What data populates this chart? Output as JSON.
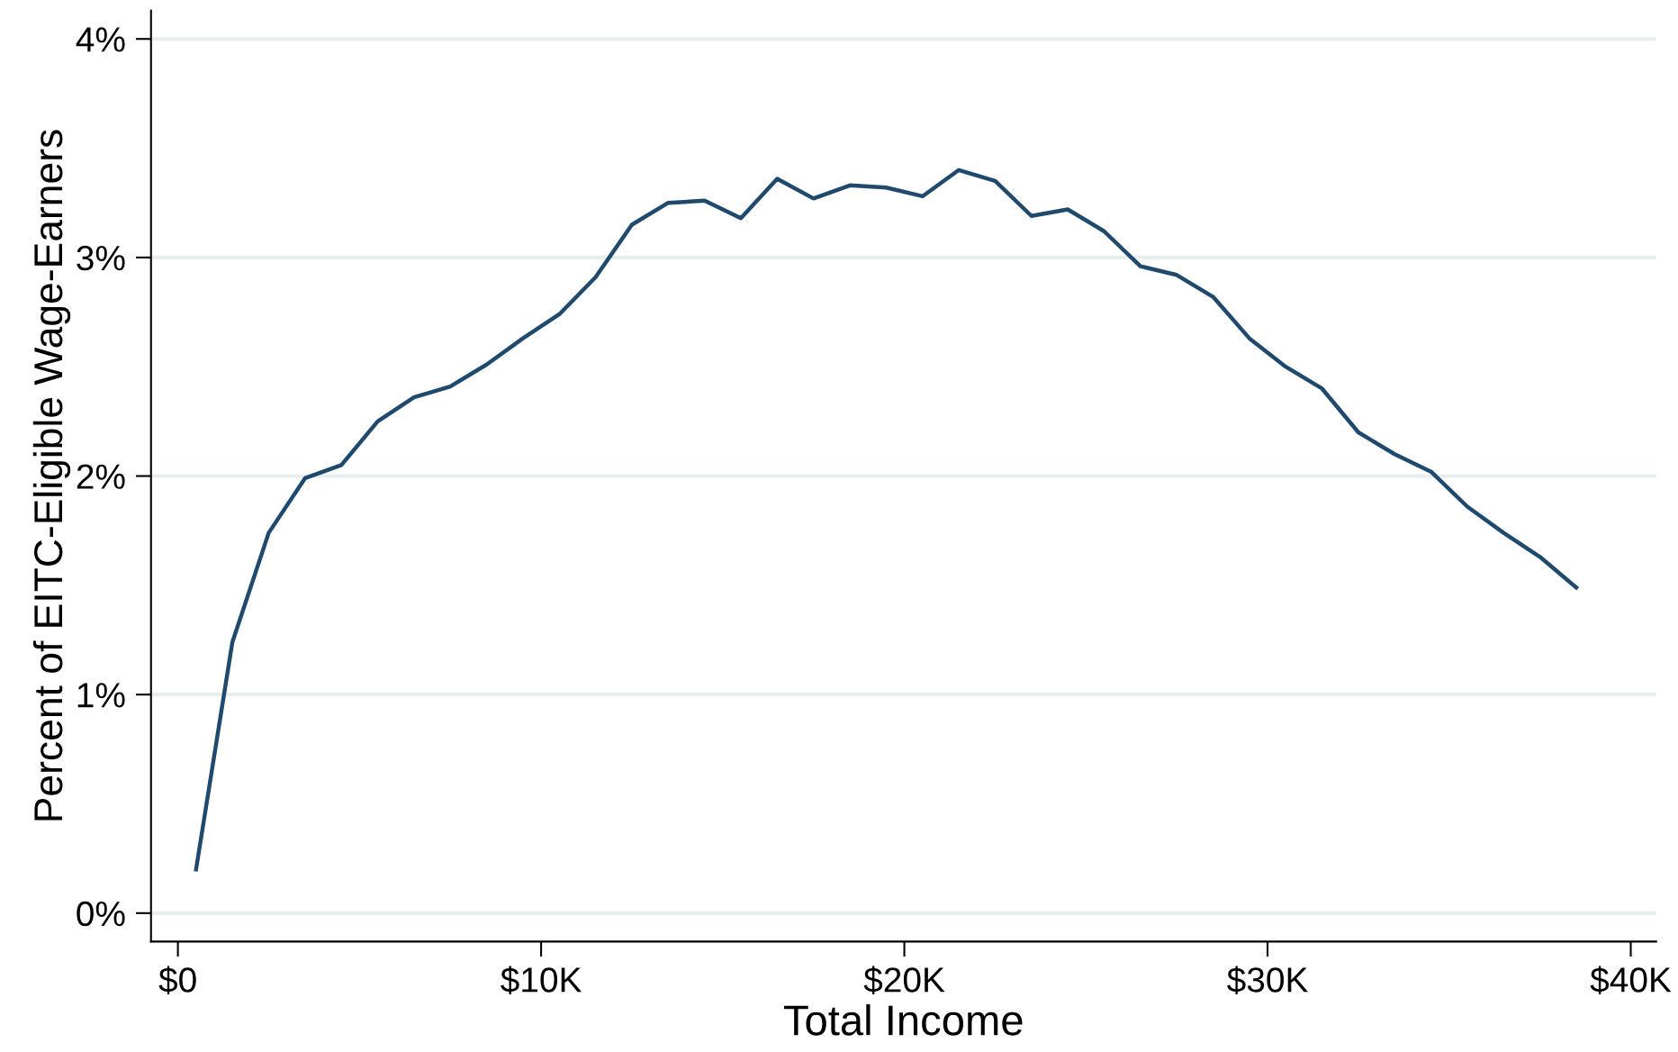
{
  "chart_data": {
    "type": "line",
    "xlabel": "Total Income",
    "ylabel": "Percent of EITC-Eligible Wage-Earners",
    "x": [
      500,
      1500,
      2500,
      3500,
      4500,
      5500,
      6500,
      7500,
      8500,
      9500,
      10500,
      11500,
      12500,
      13500,
      14500,
      15500,
      16500,
      17500,
      18500,
      19500,
      20500,
      21500,
      22500,
      23500,
      24500,
      25500,
      26500,
      27500,
      28500,
      29500,
      30500,
      31500,
      32500,
      33500,
      34500,
      35500,
      36500,
      37500,
      38500
    ],
    "series": [
      {
        "color": "#1f4a6e",
        "values": [
          0.2,
          1.24,
          1.74,
          1.99,
          2.05,
          2.25,
          2.36,
          2.41,
          2.51,
          2.63,
          2.74,
          2.91,
          3.15,
          3.25,
          3.26,
          3.18,
          3.36,
          3.27,
          3.33,
          3.32,
          3.28,
          3.4,
          3.35,
          3.19,
          3.22,
          3.12,
          2.96,
          2.92,
          2.82,
          2.63,
          2.5,
          2.4,
          2.2,
          2.1,
          2.02,
          1.86,
          1.74,
          1.63,
          1.49
        ]
      }
    ],
    "xlim": [
      -740,
      40700
    ],
    "ylim": [
      -0.13,
      4.13
    ],
    "xticks": [
      {
        "value": 0,
        "label": "$0"
      },
      {
        "value": 10000,
        "label": "$10K"
      },
      {
        "value": 20000,
        "label": "$20K"
      },
      {
        "value": 30000,
        "label": "$30K"
      },
      {
        "value": 40000,
        "label": "$40K"
      }
    ],
    "yticks": [
      {
        "value": 0,
        "label": "0%"
      },
      {
        "value": 1,
        "label": "1%"
      },
      {
        "value": 2,
        "label": "2%"
      },
      {
        "value": 3,
        "label": "3%"
      },
      {
        "value": 4,
        "label": "4%"
      }
    ],
    "grid": "y",
    "marker": "none",
    "line_style": "solid",
    "legend": false
  }
}
